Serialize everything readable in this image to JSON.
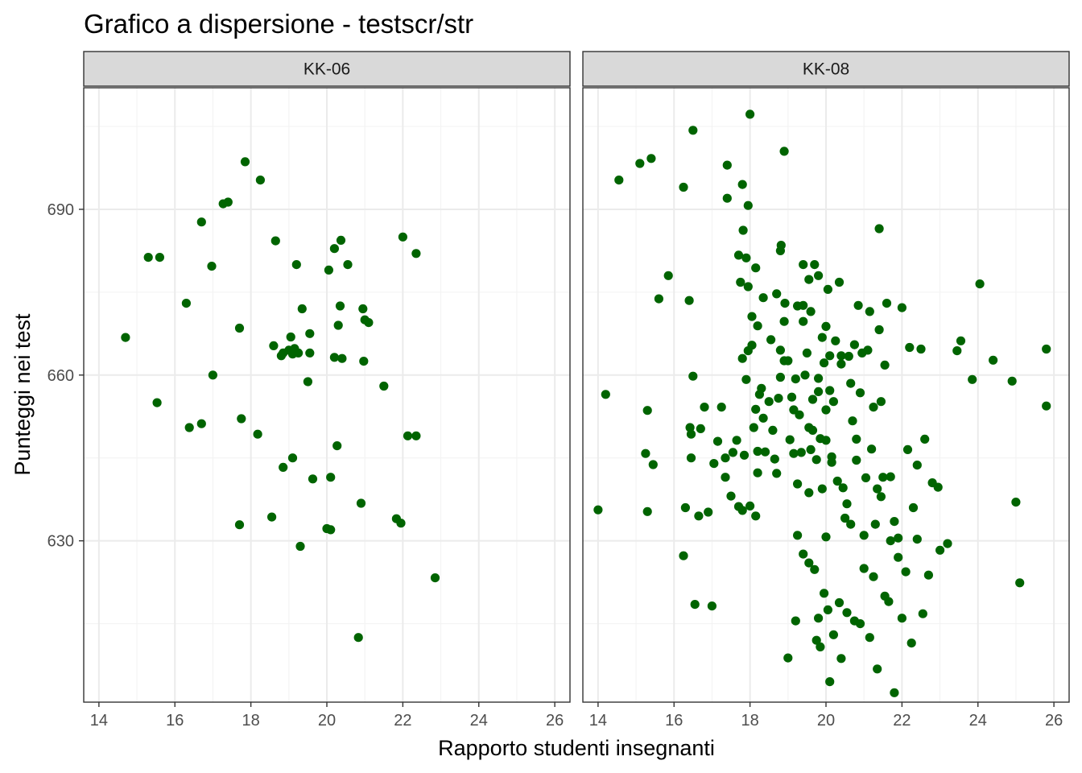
{
  "chart_data": {
    "type": "scatter",
    "title": "Grafico a dispersione - testscr/str",
    "xlabel": "Rapporto studenti insegnanti",
    "ylabel": "Punteggi nei test",
    "xlim": [
      13.6,
      26.4
    ],
    "ylim": [
      600.8,
      712.0
    ],
    "x_ticks": [
      14,
      16,
      18,
      20,
      22,
      24,
      26
    ],
    "x_tick_labels": [
      "14",
      "16",
      "18",
      "20",
      "22",
      "24",
      "26"
    ],
    "y_ticks": [
      630,
      660,
      690
    ],
    "y_tick_labels": [
      "630",
      "660",
      "690"
    ],
    "grid": true,
    "legend": "none",
    "colors": {
      "point": "#006400",
      "strip_fill": "#d9d9d9",
      "panel_border": "#333333",
      "grid_major": "#ebebeb",
      "grid_minor": "#f3f3f3"
    },
    "panels": [
      {
        "label": "KK-06",
        "points": [
          [
            14.7,
            666.8
          ],
          [
            15.3,
            681.3
          ],
          [
            15.6,
            681.3
          ],
          [
            15.53,
            655.0
          ],
          [
            16.3,
            673.0
          ],
          [
            16.38,
            650.5
          ],
          [
            16.7,
            651.2
          ],
          [
            16.7,
            687.7
          ],
          [
            16.97,
            679.7
          ],
          [
            17.0,
            660.0
          ],
          [
            17.27,
            691.0
          ],
          [
            17.4,
            691.3
          ],
          [
            17.7,
            668.5
          ],
          [
            17.7,
            632.9
          ],
          [
            17.75,
            652.1
          ],
          [
            17.85,
            698.6
          ],
          [
            18.18,
            649.3
          ],
          [
            18.25,
            695.3
          ],
          [
            18.55,
            634.3
          ],
          [
            18.6,
            665.3
          ],
          [
            18.65,
            684.3
          ],
          [
            18.8,
            663.5
          ],
          [
            18.85,
            643.3
          ],
          [
            18.85,
            664.0
          ],
          [
            19.0,
            664.5
          ],
          [
            19.05,
            666.9
          ],
          [
            19.1,
            645.0
          ],
          [
            19.15,
            664.8
          ],
          [
            19.1,
            663.8
          ],
          [
            19.2,
            680.0
          ],
          [
            19.25,
            664.0
          ],
          [
            19.3,
            629.0
          ],
          [
            19.35,
            672.0
          ],
          [
            19.5,
            658.8
          ],
          [
            19.55,
            667.5
          ],
          [
            19.55,
            664.0
          ],
          [
            19.63,
            641.2
          ],
          [
            20.0,
            632.2
          ],
          [
            20.05,
            679.0
          ],
          [
            20.1,
            632.0
          ],
          [
            20.1,
            641.5
          ],
          [
            20.2,
            663.2
          ],
          [
            20.2,
            682.9
          ],
          [
            20.3,
            669.0
          ],
          [
            20.35,
            672.5
          ],
          [
            20.37,
            684.4
          ],
          [
            20.27,
            647.2
          ],
          [
            20.4,
            663.0
          ],
          [
            20.55,
            680.0
          ],
          [
            20.83,
            612.5
          ],
          [
            20.9,
            636.8
          ],
          [
            20.95,
            672.0
          ],
          [
            21.0,
            670.0
          ],
          [
            20.97,
            662.5
          ],
          [
            21.1,
            669.5
          ],
          [
            21.5,
            658.0
          ],
          [
            21.83,
            634.0
          ],
          [
            21.95,
            633.2
          ],
          [
            22.0,
            685.0
          ],
          [
            22.13,
            649.0
          ],
          [
            22.35,
            649.0
          ],
          [
            22.35,
            682.0
          ],
          [
            22.85,
            623.3
          ]
        ]
      },
      {
        "label": "KK-08",
        "points": [
          [
            14.2,
            656.5
          ],
          [
            14.55,
            695.3
          ],
          [
            14.0,
            635.6
          ],
          [
            15.1,
            698.3
          ],
          [
            15.3,
            653.6
          ],
          [
            15.4,
            699.2
          ],
          [
            15.25,
            645.8
          ],
          [
            15.45,
            643.8
          ],
          [
            15.3,
            635.3
          ],
          [
            15.6,
            673.8
          ],
          [
            15.85,
            678.0
          ],
          [
            16.25,
            627.3
          ],
          [
            16.25,
            694.0
          ],
          [
            16.3,
            636.0
          ],
          [
            16.42,
            650.5
          ],
          [
            16.45,
            649.3
          ],
          [
            16.45,
            645.0
          ],
          [
            16.5,
            704.3
          ],
          [
            16.4,
            673.5
          ],
          [
            16.5,
            659.8
          ],
          [
            16.55,
            618.5
          ],
          [
            16.65,
            634.5
          ],
          [
            16.7,
            650.3
          ],
          [
            16.8,
            654.2
          ],
          [
            16.9,
            635.2
          ],
          [
            17.0,
            618.2
          ],
          [
            17.05,
            644.0
          ],
          [
            17.15,
            648.0
          ],
          [
            17.25,
            654.2
          ],
          [
            17.35,
            645.0
          ],
          [
            17.35,
            641.5
          ],
          [
            17.4,
            692.0
          ],
          [
            17.4,
            698.0
          ],
          [
            17.5,
            638.1
          ],
          [
            17.55,
            646.0
          ],
          [
            17.65,
            648.2
          ],
          [
            17.7,
            681.7
          ],
          [
            17.75,
            676.8
          ],
          [
            17.8,
            663.0
          ],
          [
            17.9,
            659.2
          ],
          [
            17.8,
            694.5
          ],
          [
            17.82,
            686.2
          ],
          [
            17.7,
            636.2
          ],
          [
            17.8,
            635.5
          ],
          [
            17.85,
            645.5
          ],
          [
            17.9,
            681.2
          ],
          [
            17.95,
            664.4
          ],
          [
            18.0,
            707.2
          ],
          [
            17.95,
            676.0
          ],
          [
            17.95,
            690.7
          ],
          [
            18.0,
            636.3
          ],
          [
            18.05,
            670.6
          ],
          [
            18.05,
            665.4
          ],
          [
            18.1,
            650.5
          ],
          [
            18.15,
            653.8
          ],
          [
            18.2,
            646.2
          ],
          [
            18.2,
            668.9
          ],
          [
            18.25,
            656.5
          ],
          [
            18.3,
            657.6
          ],
          [
            18.2,
            642.3
          ],
          [
            18.15,
            679.4
          ],
          [
            18.15,
            634.5
          ],
          [
            18.35,
            652.2
          ],
          [
            18.35,
            674.0
          ],
          [
            18.4,
            646.1
          ],
          [
            18.5,
            655.2
          ],
          [
            18.55,
            666.4
          ],
          [
            18.6,
            650.0
          ],
          [
            18.65,
            644.8
          ],
          [
            18.7,
            642.2
          ],
          [
            18.7,
            674.7
          ],
          [
            18.8,
            664.5
          ],
          [
            18.75,
            655.8
          ],
          [
            18.8,
            659.6
          ],
          [
            18.8,
            682.5
          ],
          [
            18.82,
            683.5
          ],
          [
            18.9,
            669.7
          ],
          [
            18.9,
            662.6
          ],
          [
            18.9,
            700.5
          ],
          [
            18.92,
            673.0
          ],
          [
            19.0,
            662.6
          ],
          [
            19.05,
            648.3
          ],
          [
            19.1,
            656.0
          ],
          [
            19.15,
            653.7
          ],
          [
            19.15,
            645.8
          ],
          [
            19.2,
            659.3
          ],
          [
            19.25,
            640.3
          ],
          [
            19.25,
            672.5
          ],
          [
            19.3,
            652.8
          ],
          [
            19.35,
            646.0
          ],
          [
            19.4,
            680.0
          ],
          [
            19.4,
            672.6
          ],
          [
            19.4,
            669.7
          ],
          [
            19.45,
            660.0
          ],
          [
            19.5,
            664.0
          ],
          [
            19.55,
            638.7
          ],
          [
            19.55,
            650.5
          ],
          [
            19.55,
            677.3
          ],
          [
            19.6,
            671.5
          ],
          [
            19.65,
            655.6
          ],
          [
            19.7,
            680.0
          ],
          [
            19.75,
            644.7
          ],
          [
            19.8,
            678.0
          ],
          [
            19.8,
            659.4
          ],
          [
            19.8,
            657.0
          ],
          [
            19.85,
            648.5
          ],
          [
            19.9,
            639.4
          ],
          [
            19.9,
            666.8
          ],
          [
            19.95,
            662.2
          ],
          [
            20.0,
            653.7
          ],
          [
            20.0,
            648.2
          ],
          [
            20.0,
            630.7
          ],
          [
            20.0,
            668.8
          ],
          [
            20.05,
            675.5
          ],
          [
            20.1,
            657.2
          ],
          [
            20.1,
            663.5
          ],
          [
            20.15,
            645.2
          ],
          [
            20.15,
            644.2
          ],
          [
            20.2,
            655.2
          ],
          [
            20.25,
            666.2
          ],
          [
            20.3,
            640.8
          ],
          [
            20.35,
            676.8
          ],
          [
            20.4,
            663.5
          ],
          [
            20.4,
            662.0
          ],
          [
            20.45,
            639.6
          ],
          [
            20.5,
            634.1
          ],
          [
            20.55,
            636.7
          ],
          [
            20.6,
            663.4
          ],
          [
            20.65,
            658.5
          ],
          [
            20.7,
            651.7
          ],
          [
            20.75,
            665.5
          ],
          [
            20.8,
            644.6
          ],
          [
            20.8,
            648.4
          ],
          [
            20.85,
            672.6
          ],
          [
            20.9,
            656.8
          ],
          [
            20.95,
            664.0
          ],
          [
            21.0,
            631.0
          ],
          [
            21.05,
            641.4
          ],
          [
            21.1,
            664.5
          ],
          [
            21.15,
            671.5
          ],
          [
            21.2,
            646.6
          ],
          [
            21.25,
            654.2
          ],
          [
            21.3,
            633.0
          ],
          [
            21.35,
            639.4
          ],
          [
            21.4,
            668.2
          ],
          [
            21.4,
            686.5
          ],
          [
            21.45,
            655.2
          ],
          [
            21.5,
            641.5
          ],
          [
            21.55,
            661.8
          ],
          [
            21.6,
            673.0
          ],
          [
            21.7,
            641.6
          ],
          [
            21.8,
            633.5
          ],
          [
            21.9,
            627.0
          ],
          [
            22.0,
            672.2
          ],
          [
            22.15,
            646.5
          ],
          [
            22.2,
            665.0
          ],
          [
            22.3,
            636.0
          ],
          [
            22.4,
            643.7
          ],
          [
            22.5,
            664.7
          ],
          [
            22.6,
            648.4
          ],
          [
            22.7,
            623.8
          ],
          [
            22.8,
            640.5
          ],
          [
            22.95,
            639.7
          ],
          [
            23.0,
            628.3
          ],
          [
            23.2,
            629.5
          ],
          [
            23.45,
            664.4
          ],
          [
            23.55,
            666.2
          ],
          [
            23.85,
            659.2
          ],
          [
            24.05,
            676.5
          ],
          [
            24.4,
            662.7
          ],
          [
            24.9,
            658.9
          ],
          [
            25.0,
            637.0
          ],
          [
            25.1,
            622.4
          ],
          [
            25.8,
            664.7
          ],
          [
            25.8,
            654.4
          ],
          [
            19.0,
            608.8
          ],
          [
            19.2,
            615.5
          ],
          [
            19.25,
            631.0
          ],
          [
            19.4,
            627.6
          ],
          [
            19.55,
            626.0
          ],
          [
            19.6,
            646.5
          ],
          [
            19.65,
            650.0
          ],
          [
            19.7,
            624.8
          ],
          [
            19.75,
            612.0
          ],
          [
            19.8,
            616.0
          ],
          [
            19.85,
            610.8
          ],
          [
            19.95,
            620.5
          ],
          [
            20.05,
            617.5
          ],
          [
            20.1,
            604.5
          ],
          [
            20.2,
            613.0
          ],
          [
            20.35,
            618.8
          ],
          [
            20.4,
            608.7
          ],
          [
            20.55,
            617.0
          ],
          [
            20.65,
            633.0
          ],
          [
            20.75,
            615.5
          ],
          [
            20.9,
            615.0
          ],
          [
            21.0,
            625.0
          ],
          [
            21.15,
            612.5
          ],
          [
            21.25,
            623.5
          ],
          [
            21.35,
            606.8
          ],
          [
            21.45,
            638.0
          ],
          [
            21.55,
            620.0
          ],
          [
            21.65,
            619.0
          ],
          [
            21.7,
            630.0
          ],
          [
            21.8,
            602.5
          ],
          [
            21.9,
            630.5
          ],
          [
            22.0,
            616.0
          ],
          [
            22.1,
            624.4
          ],
          [
            22.25,
            611.5
          ],
          [
            22.4,
            630.3
          ],
          [
            22.55,
            616.8
          ]
        ]
      }
    ]
  }
}
